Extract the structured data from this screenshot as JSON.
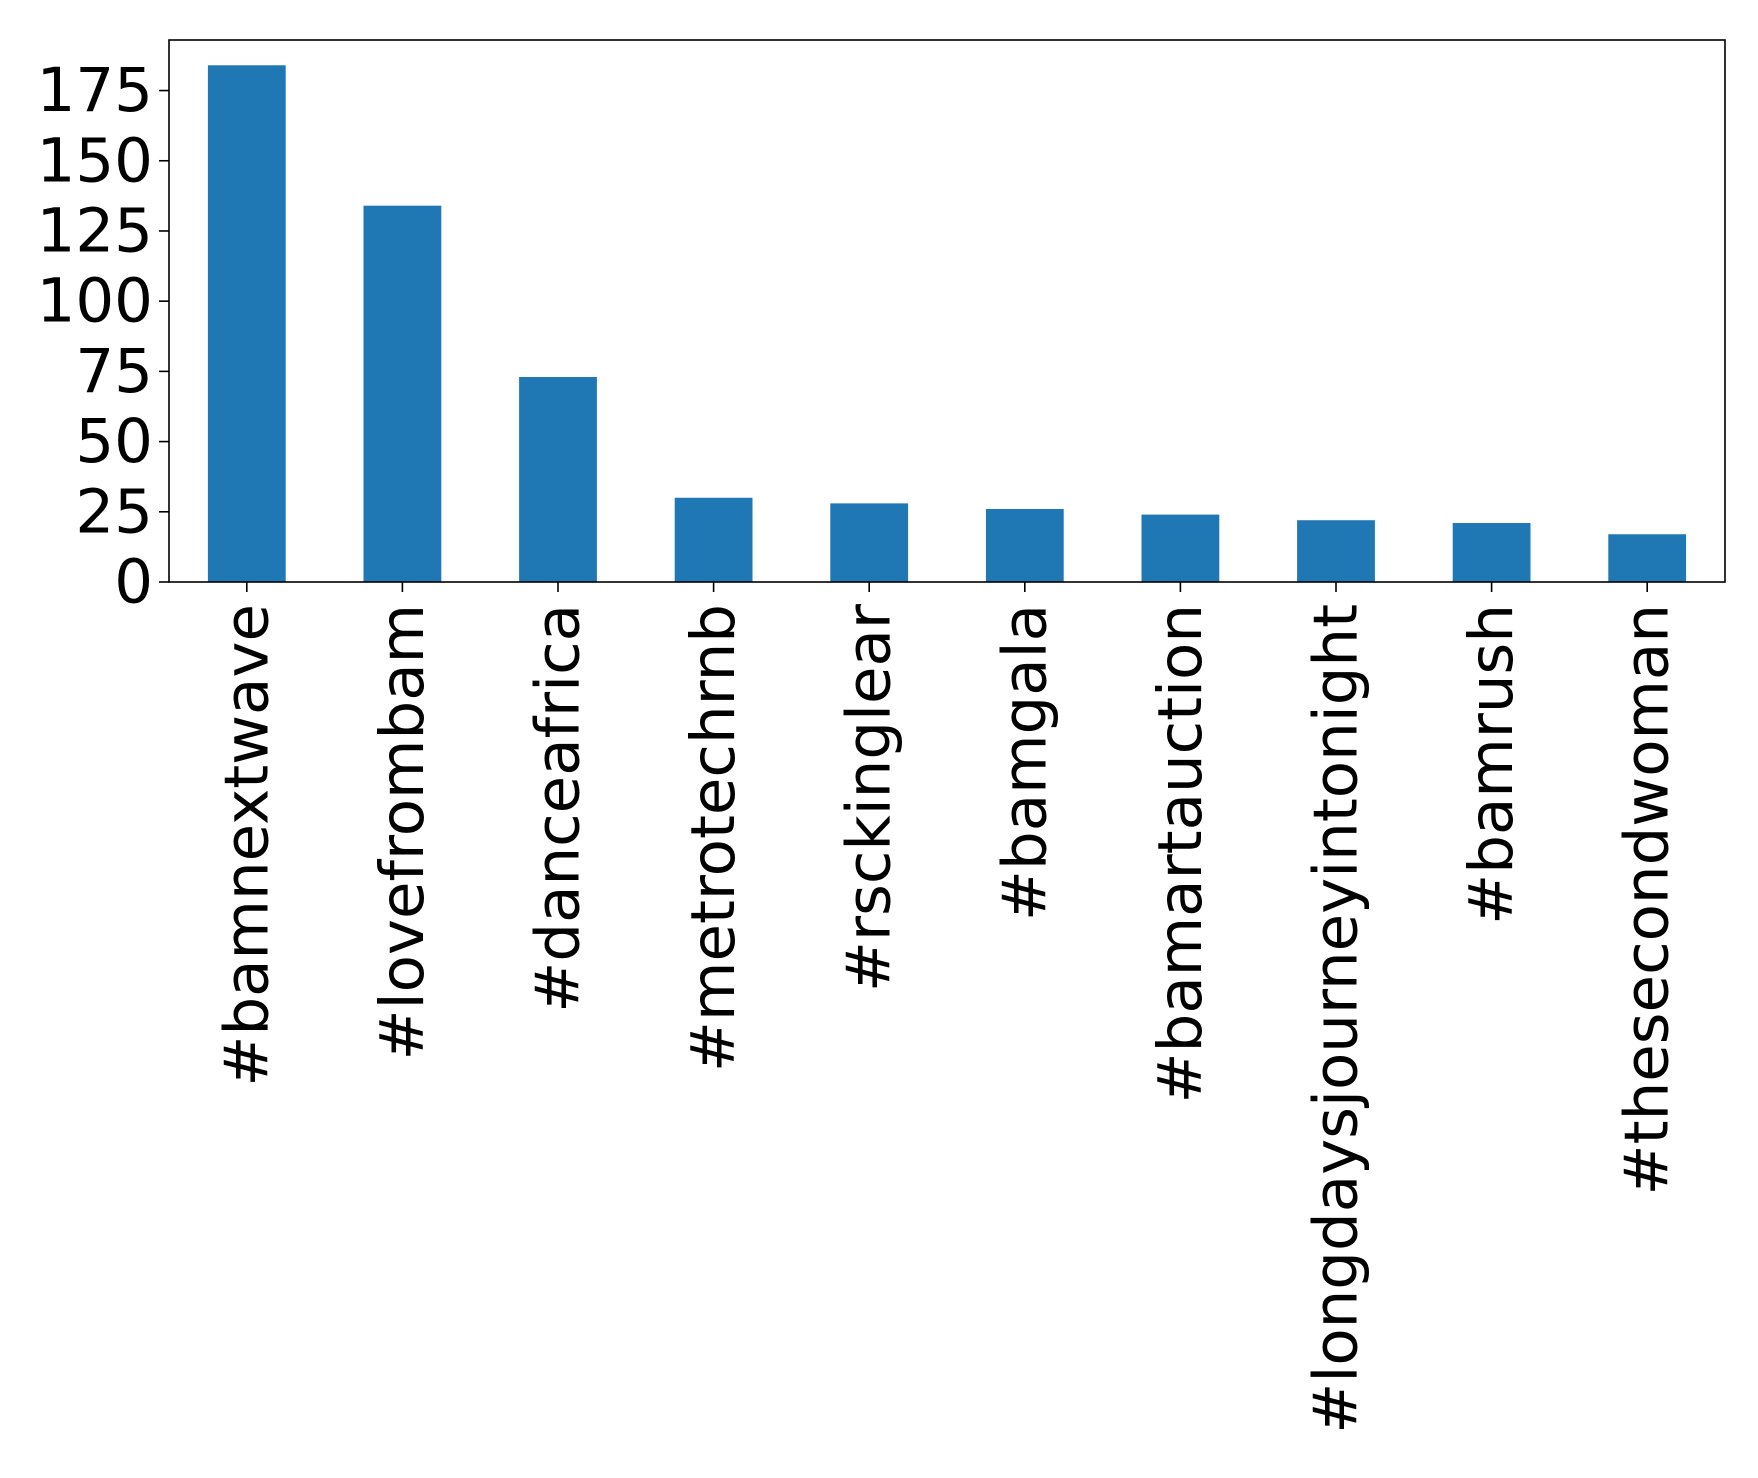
{
  "chart_data": {
    "type": "bar",
    "title": "",
    "xlabel": "",
    "ylabel": "",
    "categories": [
      "#bamnextwave",
      "#lovefrombam",
      "#danceafrica",
      "#metrotechrnb",
      "#rsckinglear",
      "#bamgala",
      "#bamartauction",
      "#longdaysjourneyintonight",
      "#bamrush",
      "#thesecondwoman"
    ],
    "values": [
      184,
      134,
      73,
      30,
      28,
      26,
      24,
      22,
      21,
      17
    ],
    "ylim": [
      0,
      193
    ],
    "yticks": [
      0,
      25,
      50,
      75,
      100,
      125,
      150,
      175
    ],
    "bar_color": "#1f77b4",
    "grid": false,
    "legend": "none"
  }
}
